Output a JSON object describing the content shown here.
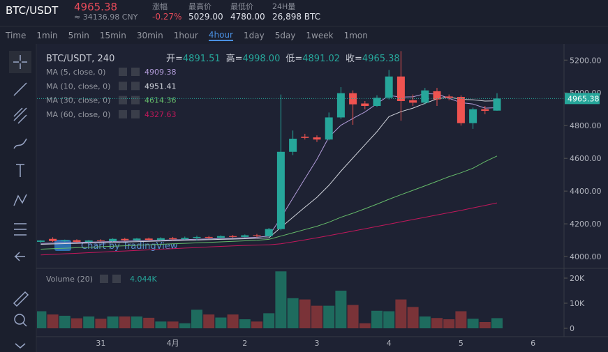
{
  "header": {
    "symbol": "BTC/USDT",
    "price": "4965.38",
    "cny": "≈ 34136.98 CNY",
    "stats": [
      {
        "label": "涨幅",
        "value": "-0.27%"
      },
      {
        "label": "最高价",
        "value": "5029.00"
      },
      {
        "label": "最低价",
        "value": "4780.00"
      },
      {
        "label": "24H量",
        "value": "26,898 BTC"
      }
    ]
  },
  "toolbar": {
    "intervals": [
      "Time",
      "1min",
      "5min",
      "15min",
      "30min",
      "1hour",
      "4hour",
      "1day",
      "5day",
      "1week",
      "1mon"
    ],
    "active": 6
  },
  "legend": {
    "title": "BTC/USDT, 240",
    "ohlc": [
      {
        "label": "开=",
        "value": "4891.51"
      },
      {
        "label": "高=",
        "value": "4998.00"
      },
      {
        "label": "低=",
        "value": "4891.02"
      },
      {
        "label": "收=",
        "value": "4965.38"
      }
    ]
  },
  "watermark": "Chart by TradingView",
  "chart_data": {
    "type": "candlestick",
    "categories": [
      null,
      null,
      null,
      null,
      null,
      "31",
      null,
      null,
      null,
      null,
      null,
      "4月",
      null,
      null,
      null,
      null,
      null,
      "2",
      null,
      null,
      null,
      null,
      null,
      "3",
      null,
      null,
      null,
      null,
      null,
      "4",
      null,
      null,
      null,
      null,
      null,
      "5",
      null,
      null,
      null,
      null,
      null,
      "6"
    ],
    "open": [
      4090,
      4108,
      4095,
      4100,
      4090,
      4098,
      4094,
      4108,
      4100,
      4110,
      4102,
      4112,
      4106,
      4114,
      4120,
      4115,
      4125,
      4120,
      4130,
      4125,
      4168,
      4640,
      4732,
      4728,
      4715,
      4850,
      4998,
      4935,
      4920,
      4970,
      5100,
      4955,
      4940,
      5010,
      4978,
      4975,
      4815,
      4900,
      4891.51,
      null,
      null,
      null
    ],
    "high": [
      4100,
      4118,
      4104,
      4106,
      4102,
      4106,
      4112,
      4115,
      4114,
      4116,
      4118,
      4120,
      4122,
      4128,
      4126,
      4130,
      4132,
      4135,
      4138,
      4175,
      4990,
      4770,
      4750,
      4740,
      4880,
      5035,
      5015,
      4950,
      4985,
      5140,
      5255,
      4990,
      5030,
      5030,
      4990,
      4985,
      4910,
      4920,
      4998,
      null,
      null,
      null
    ],
    "low": [
      4083,
      4090,
      4088,
      4085,
      4084,
      4090,
      4090,
      4095,
      4096,
      4098,
      4098,
      4100,
      4102,
      4098,
      4108,
      4110,
      4115,
      4116,
      4118,
      4120,
      4160,
      4620,
      4715,
      4700,
      4710,
      4840,
      4805,
      4900,
      4915,
      4960,
      4830,
      4920,
      4930,
      4920,
      4955,
      4800,
      4780,
      4870,
      4891.02,
      null,
      null,
      null
    ],
    "close": [
      4098,
      4095,
      4100,
      4090,
      4098,
      4094,
      4108,
      4100,
      4110,
      4102,
      4112,
      4106,
      4114,
      4120,
      4115,
      4125,
      4120,
      4130,
      4125,
      4168,
      4640,
      4720,
      4725,
      4715,
      4850,
      4998,
      4930,
      4920,
      4970,
      5100,
      4950,
      4940,
      5015,
      4960,
      4970,
      4815,
      4900,
      4890,
      4965.38,
      null,
      null,
      null
    ],
    "up_color": "#26a69a",
    "down_color": "#ef5350",
    "ylim": [
      3928,
      5299
    ],
    "yticks": [
      {
        "value": 4000,
        "label": "4000.00"
      },
      {
        "value": 4200,
        "label": "4200.00"
      },
      {
        "value": 4400,
        "label": "4400.00"
      },
      {
        "value": 4600,
        "label": "4600.00"
      },
      {
        "value": 4800,
        "label": "4800.00"
      },
      {
        "value": 5000,
        "label": "5000.00"
      },
      {
        "value": 5200,
        "label": "5200.00"
      }
    ],
    "series": [
      {
        "name": "MA (5, close, 0)",
        "color": "#b39ddb",
        "values": [
          4080,
          4082,
          4084,
          4086,
          4088,
          4090,
          4092,
          4094,
          4096,
          4098,
          4100,
          4102,
          4104,
          4106,
          4108,
          4110,
          4112,
          4115,
          4118,
          4125,
          4237,
          4357,
          4476,
          4594,
          4730,
          4802,
          4844,
          4883,
          4934,
          4984,
          4974,
          4976,
          4995,
          4993,
          4967,
          4940,
          4932,
          4907,
          4909.38,
          null,
          null,
          null
        ]
      },
      {
        "name": "MA (10, close, 0)",
        "color": "#d1d4dc",
        "values": [
          4075,
          4077,
          4079,
          4081,
          4083,
          4085,
          4087,
          4089,
          4091,
          4093,
          4095,
          4097,
          4099,
          4101,
          4103,
          4105,
          4107,
          4109,
          4111,
          4115,
          4178,
          4240,
          4302,
          4362,
          4435,
          4522,
          4603,
          4683,
          4763,
          4855,
          4885,
          4907,
          4936,
          4963,
          4975,
          4960,
          4958,
          4950,
          4951.41,
          null,
          null,
          null
        ]
      },
      {
        "name": "MA (30, close, 0)",
        "color": "#66bb6a",
        "values": [
          4045,
          4048,
          4051,
          4054,
          4057,
          4060,
          4063,
          4066,
          4069,
          4072,
          4075,
          4078,
          4081,
          4084,
          4087,
          4090,
          4093,
          4096,
          4099,
          4105,
          4125,
          4145,
          4165,
          4185,
          4210,
          4240,
          4265,
          4292,
          4320,
          4350,
          4378,
          4405,
          4432,
          4460,
          4488,
          4512,
          4540,
          4580,
          4614.36,
          null,
          null,
          null
        ]
      },
      {
        "name": "MA (60, close, 0)",
        "color": "#c2185b",
        "values": [
          4010,
          4013,
          4017,
          4020,
          4024,
          4027,
          4031,
          4034,
          4038,
          4041,
          4045,
          4048,
          4052,
          4055,
          4059,
          4062,
          4065,
          4068,
          4070,
          4072,
          4078,
          4090,
          4102,
          4115,
          4128,
          4142,
          4156,
          4170,
          4184,
          4198,
          4212,
          4226,
          4240,
          4254,
          4268,
          4282,
          4297,
          4312,
          4327.63,
          null,
          null,
          null
        ]
      }
    ],
    "last_price_line": true,
    "volume": {
      "title": "Volume (20)",
      "current": "4.044K",
      "up_color": "#1e6b5e",
      "down_color": "#7a3338",
      "values": [
        6800,
        5500,
        5000,
        4000,
        4700,
        3800,
        4700,
        4700,
        4700,
        4200,
        2700,
        2700,
        2000,
        7400,
        5500,
        4300,
        5500,
        3600,
        2700,
        6000,
        22700,
        12000,
        11500,
        9000,
        9000,
        15000,
        9300,
        2000,
        7000,
        6800,
        11500,
        8500,
        4700,
        4100,
        3600,
        6800,
        3800,
        2500,
        4044,
        null,
        null,
        null
      ],
      "ylim": [
        -1944,
        23611
      ],
      "yticks": [
        0,
        {
          "value": 10000,
          "label": "10K"
        },
        {
          "value": 20000,
          "label": "20K"
        }
      ]
    }
  }
}
